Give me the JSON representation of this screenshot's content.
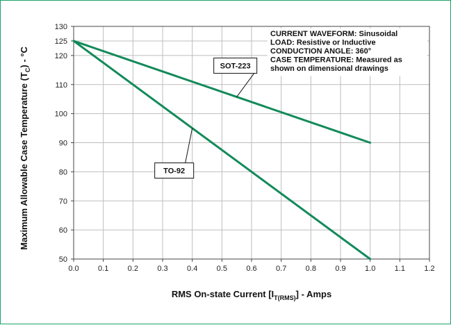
{
  "colors": {
    "series": "#138a5a",
    "grid": "#bdbdbd",
    "frame": "#1aa36a",
    "axis": "#444444"
  },
  "chart_data": {
    "type": "line",
    "title": "",
    "xlabel": {
      "prefix": "RMS On-state Current [I",
      "sub": "T(RMS)",
      "suffix": "] - Amps"
    },
    "ylabel": {
      "prefix": "Maximum Allowable Case Temperature (T",
      "sub": "C",
      "suffix": ") - °C"
    },
    "xlim": [
      0,
      1.2
    ],
    "ylim": [
      50,
      130
    ],
    "x_ticks": [
      "0.0",
      "0.1",
      "0.2",
      "0.3",
      "0.4",
      "0.5",
      "0.6",
      "0.7",
      "0.8",
      "0.9",
      "1.0",
      "1.1",
      "1.2"
    ],
    "y_ticks": [
      "50",
      "60",
      "70",
      "80",
      "90",
      "100",
      "110",
      "120",
      "125",
      "130"
    ],
    "y_tick_values": [
      50,
      60,
      70,
      80,
      90,
      100,
      110,
      120,
      125,
      130
    ],
    "grid": true,
    "series": [
      {
        "name": "SOT-223",
        "x": [
          0.0,
          1.0
        ],
        "y": [
          125,
          90
        ]
      },
      {
        "name": "TO-92",
        "x": [
          0.0,
          1.0
        ],
        "y": [
          125,
          50
        ]
      }
    ],
    "callouts": [
      {
        "label": "SOT-223",
        "series": 0,
        "at_x": 0.55
      },
      {
        "label": "TO-92",
        "series": 1,
        "at_x": 0.4
      }
    ],
    "notes": [
      "CURRENT WAVEFORM: Sinusoidal",
      "LOAD: Resistive or Inductive",
      "CONDUCTION ANGLE: 360°",
      "CASE TEMPERATURE: Measured as",
      "shown on dimensional drawings"
    ]
  }
}
